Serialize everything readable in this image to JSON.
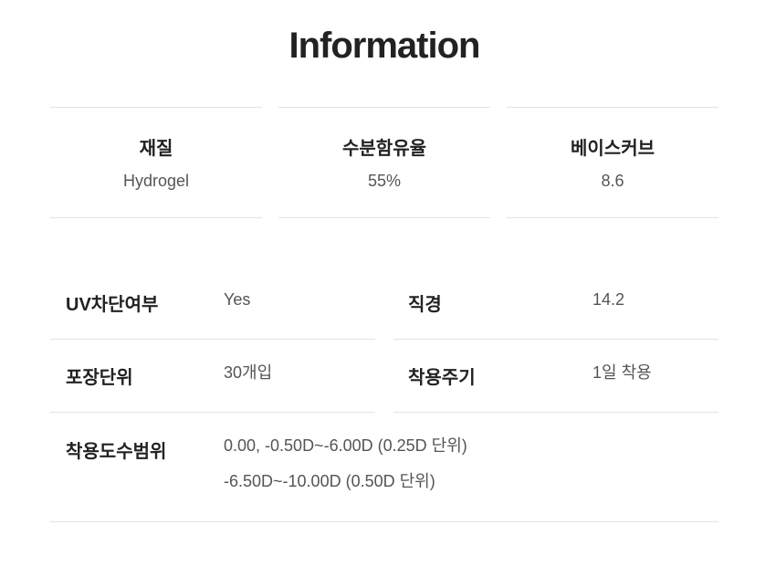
{
  "title": "Information",
  "cards": [
    {
      "label": "재질",
      "value": "Hydrogel"
    },
    {
      "label": "수분함유율",
      "value": "55%"
    },
    {
      "label": "베이스커브",
      "value": "8.6"
    }
  ],
  "specs": {
    "uv": {
      "label": "UV차단여부",
      "value": "Yes"
    },
    "diameter": {
      "label": "직경",
      "value": "14.2"
    },
    "package": {
      "label": "포장단위",
      "value": "30개입"
    },
    "cycle": {
      "label": "착용주기",
      "value": "1일 착용"
    },
    "power": {
      "label": "착용도수범위",
      "lines": [
        "0.00, -0.50D~-6.00D (0.25D 단위)",
        "-6.50D~-10.00D (0.50D 단위)"
      ]
    }
  }
}
